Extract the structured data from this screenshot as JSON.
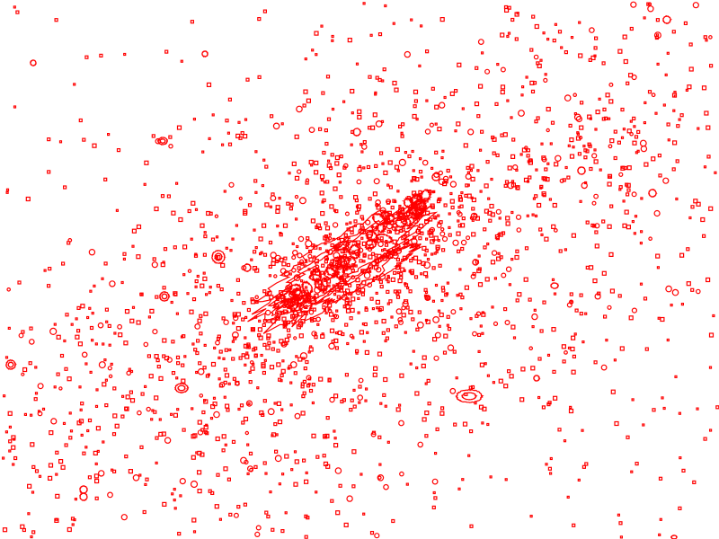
{
  "image": {
    "background_color": "#ffffff",
    "contour_color": "#ff0000",
    "subject": "galaxy"
  }
}
